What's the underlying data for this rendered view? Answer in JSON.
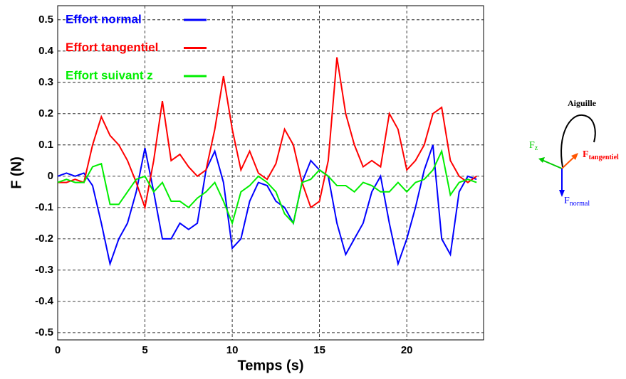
{
  "chart_data": {
    "type": "line",
    "xlabel": "Temps (s)",
    "ylabel": "F (N)",
    "x": [
      0,
      0.5,
      1,
      1.5,
      2,
      2.5,
      3,
      3.5,
      4,
      4.5,
      5,
      5.5,
      6,
      6.5,
      7,
      7.5,
      8,
      8.5,
      9,
      9.5,
      10,
      10.5,
      11,
      11.5,
      12,
      12.5,
      13,
      13.5,
      14,
      14.5,
      15,
      15.5,
      16,
      16.5,
      17,
      17.5,
      18,
      18.5,
      19,
      19.5,
      20,
      20.5,
      21,
      21.5,
      22,
      22.5,
      23,
      23.5,
      24
    ],
    "series": [
      {
        "name": "Effort normal",
        "color": "#0000ff",
        "values": [
          0,
          0.01,
          0,
          0.01,
          -0.03,
          -0.15,
          -0.28,
          -0.2,
          -0.15,
          -0.05,
          0.09,
          -0.05,
          -0.2,
          -0.2,
          -0.15,
          -0.17,
          -0.15,
          0.02,
          0.08,
          -0.02,
          -0.23,
          -0.2,
          -0.08,
          -0.02,
          -0.03,
          -0.08,
          -0.1,
          -0.15,
          -0.02,
          0.05,
          0.02,
          0,
          -0.15,
          -0.25,
          -0.2,
          -0.15,
          -0.05,
          0,
          -0.15,
          -0.28,
          -0.2,
          -0.1,
          0.02,
          0.1,
          -0.2,
          -0.25,
          -0.05,
          0,
          -0.01
        ]
      },
      {
        "name": "Effort tangentiel",
        "color": "#ff0000",
        "values": [
          -0.02,
          -0.02,
          -0.01,
          -0.02,
          0.1,
          0.19,
          0.13,
          0.1,
          0.05,
          -0.02,
          -0.1,
          0.05,
          0.24,
          0.05,
          0.07,
          0.03,
          0,
          0.02,
          0.15,
          0.32,
          0.15,
          0.02,
          0.08,
          0.01,
          -0.01,
          0.04,
          0.15,
          0.1,
          -0.02,
          -0.1,
          -0.08,
          0.05,
          0.38,
          0.2,
          0.1,
          0.03,
          0.05,
          0.03,
          0.2,
          0.15,
          0.02,
          0.05,
          0.1,
          0.2,
          0.22,
          0.05,
          0,
          -0.02,
          0
        ]
      },
      {
        "name": "Effort suivant z",
        "color": "#00ee00",
        "values": [
          -0.02,
          -0.01,
          -0.02,
          -0.02,
          0.03,
          0.04,
          -0.09,
          -0.09,
          -0.05,
          -0.01,
          0,
          -0.05,
          -0.02,
          -0.08,
          -0.08,
          -0.1,
          -0.07,
          -0.05,
          -0.02,
          -0.08,
          -0.15,
          -0.05,
          -0.03,
          0,
          -0.02,
          -0.05,
          -0.12,
          -0.15,
          -0.02,
          -0.01,
          0.02,
          0,
          -0.03,
          -0.03,
          -0.05,
          -0.02,
          -0.03,
          -0.05,
          -0.05,
          -0.02,
          -0.05,
          -0.02,
          -0.01,
          0.02,
          0.08,
          -0.06,
          -0.02,
          -0.01,
          -0.02
        ]
      }
    ],
    "xlim": [
      0,
      24.4
    ],
    "ylim": [
      -0.523,
      0.545
    ],
    "xticks": [
      0,
      5,
      10,
      15,
      20
    ],
    "yticks": [
      -0.5,
      -0.4,
      -0.3,
      -0.2,
      -0.1,
      0,
      0.1,
      0.2,
      0.3,
      0.4,
      0.5
    ],
    "grid": true,
    "legend": "upper left"
  },
  "diagram": {
    "label": "Aiguille",
    "forces": [
      {
        "symbol": "F",
        "subscript": "z",
        "color": "#00cc00"
      },
      {
        "symbol": "F",
        "subscript": "tangentiel",
        "color": "#ff0000"
      },
      {
        "symbol": "F",
        "subscript": "normal",
        "color": "#0000ff"
      }
    ]
  }
}
